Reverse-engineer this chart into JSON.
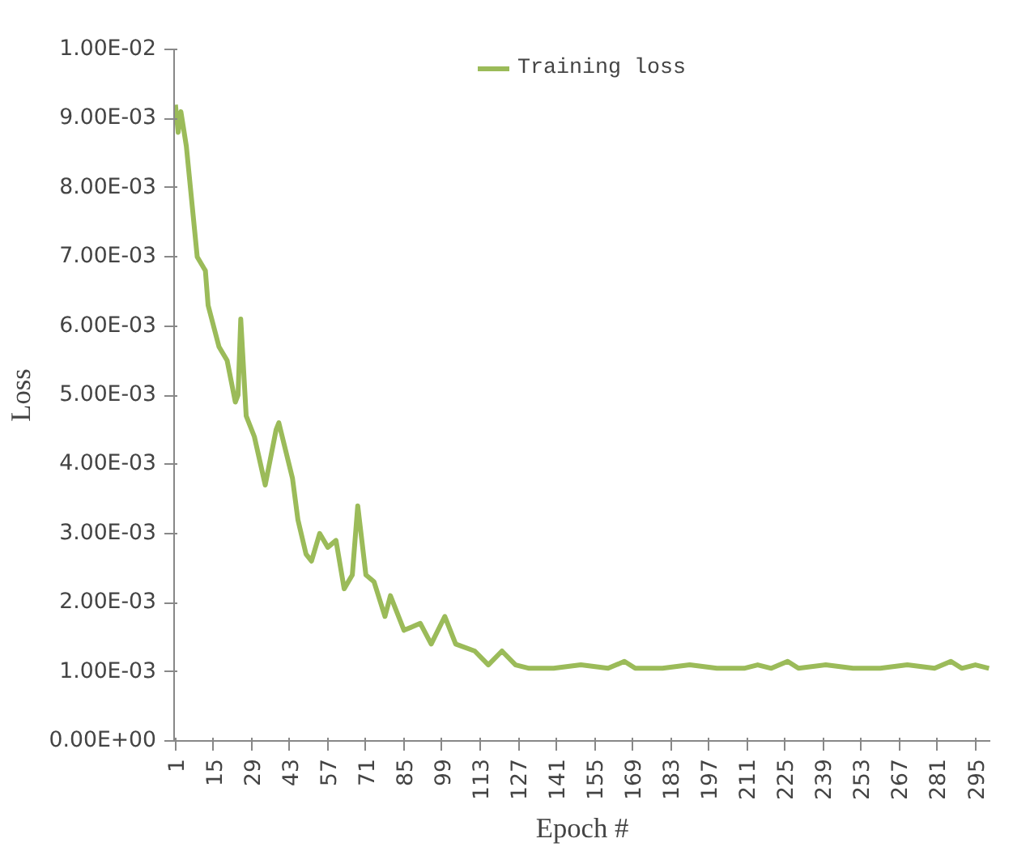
{
  "chart_data": {
    "type": "line",
    "xlabel": "Epoch #",
    "ylabel": "Loss",
    "xlim": [
      0.5,
      300.5
    ],
    "xticks": [
      1,
      15,
      29,
      43,
      57,
      71,
      85,
      99,
      113,
      127,
      141,
      155,
      169,
      183,
      197,
      211,
      225,
      239,
      253,
      267,
      281,
      295
    ],
    "ylim": [
      0,
      0.01
    ],
    "yticks": [
      {
        "value": 0,
        "label": "0.00E+00"
      },
      {
        "value": 0.001,
        "label": "1.00E-03"
      },
      {
        "value": 0.002,
        "label": "2.00E-03"
      },
      {
        "value": 0.003,
        "label": "3.00E-03"
      },
      {
        "value": 0.004,
        "label": "4.00E-03"
      },
      {
        "value": 0.005,
        "label": "5.00E-03"
      },
      {
        "value": 0.006,
        "label": "6.00E-03"
      },
      {
        "value": 0.007,
        "label": "7.00E-03"
      },
      {
        "value": 0.008,
        "label": "8.00E-03"
      },
      {
        "value": 0.009,
        "label": "9.00E-03"
      },
      {
        "value": 0.01,
        "label": "1.00E-02"
      }
    ],
    "legend": "top",
    "grid": false,
    "series": [
      {
        "name": "Training loss",
        "color": "#9bbb59",
        "x": [
          1,
          2,
          3,
          5,
          9,
          12,
          13,
          17,
          20,
          23,
          24,
          25,
          27,
          30,
          34,
          38,
          39,
          44,
          46,
          49,
          51,
          54,
          57,
          60,
          63,
          66,
          68,
          71,
          74,
          78,
          80,
          85,
          91,
          95,
          100,
          104,
          111,
          116,
          121,
          126,
          131,
          140,
          150,
          160,
          166,
          170,
          180,
          190,
          200,
          210,
          215,
          220,
          226,
          230,
          240,
          250,
          260,
          270,
          280,
          286,
          290,
          295,
          300
        ],
        "values": [
          0.0092,
          0.0088,
          0.0091,
          0.0086,
          0.007,
          0.0068,
          0.0063,
          0.0057,
          0.0055,
          0.0049,
          0.005,
          0.0061,
          0.0047,
          0.0044,
          0.0037,
          0.0045,
          0.0046,
          0.0038,
          0.0032,
          0.0027,
          0.0026,
          0.003,
          0.0028,
          0.0029,
          0.0022,
          0.0024,
          0.0034,
          0.0024,
          0.0023,
          0.0018,
          0.0021,
          0.0016,
          0.0017,
          0.0014,
          0.0018,
          0.0014,
          0.0013,
          0.0011,
          0.0013,
          0.0011,
          0.00105,
          0.00105,
          0.0011,
          0.00105,
          0.00115,
          0.00105,
          0.00105,
          0.0011,
          0.00105,
          0.00105,
          0.0011,
          0.00105,
          0.00115,
          0.00105,
          0.0011,
          0.00105,
          0.00105,
          0.0011,
          0.00105,
          0.00115,
          0.00105,
          0.0011,
          0.00105
        ]
      }
    ]
  }
}
